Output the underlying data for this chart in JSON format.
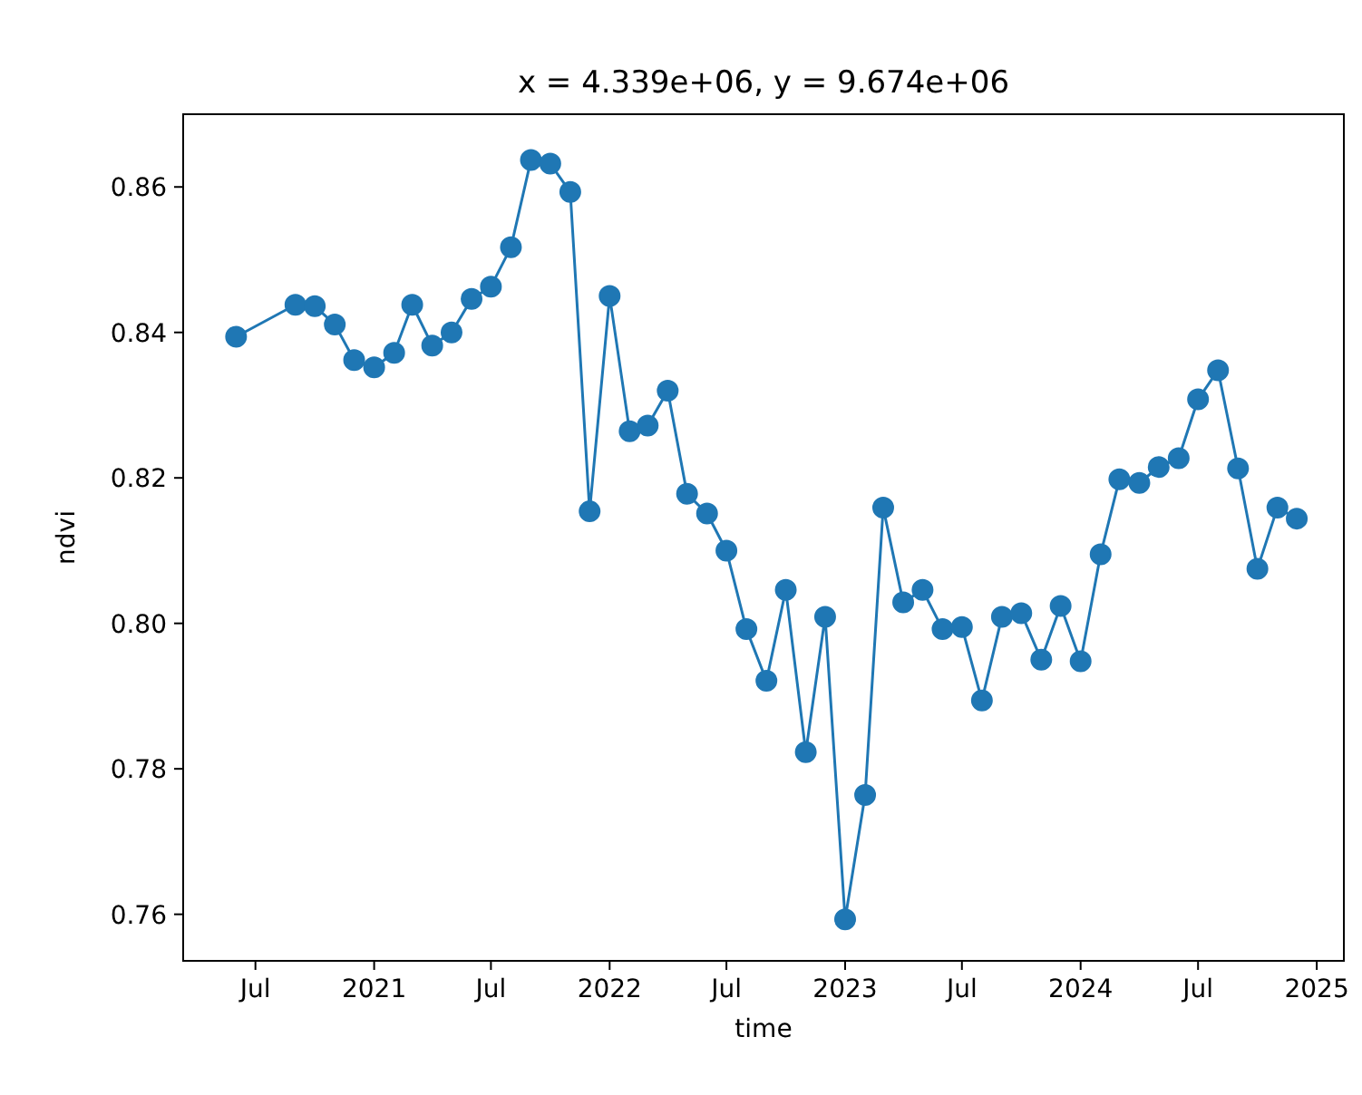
{
  "chart_data": {
    "type": "line",
    "title": "x = 4.339e+06, y = 9.674e+06",
    "xlabel": "time",
    "ylabel": "ndvi",
    "marker": "circle",
    "line_style": "solid",
    "grid": false,
    "x": [
      "2020-06-01",
      "2020-09-01",
      "2020-10-01",
      "2020-11-01",
      "2020-12-01",
      "2021-01-01",
      "2021-02-01",
      "2021-03-01",
      "2021-04-01",
      "2021-05-01",
      "2021-06-01",
      "2021-07-01",
      "2021-08-01",
      "2021-09-01",
      "2021-10-01",
      "2021-11-01",
      "2021-12-01",
      "2022-01-01",
      "2022-02-01",
      "2022-03-01",
      "2022-04-01",
      "2022-05-01",
      "2022-06-01",
      "2022-07-01",
      "2022-08-01",
      "2022-09-01",
      "2022-10-01",
      "2022-11-01",
      "2022-12-01",
      "2023-01-01",
      "2023-02-01",
      "2023-03-01",
      "2023-04-01",
      "2023-05-01",
      "2023-06-01",
      "2023-07-01",
      "2023-08-01",
      "2023-09-01",
      "2023-10-01",
      "2023-11-01",
      "2023-12-01",
      "2024-01-01",
      "2024-02-01",
      "2024-03-01",
      "2024-04-01",
      "2024-05-01",
      "2024-06-01",
      "2024-07-01",
      "2024-08-01",
      "2024-09-01",
      "2024-10-01",
      "2024-11-01",
      "2024-12-01"
    ],
    "series": [
      {
        "color": "#1f77b4",
        "values": [
          0.8394,
          0.8438,
          0.8436,
          0.8411,
          0.8362,
          0.8352,
          0.8372,
          0.8438,
          0.8382,
          0.84,
          0.8446,
          0.8463,
          0.8517,
          0.8637,
          0.8632,
          0.8593,
          0.8154,
          0.845,
          0.8264,
          0.8272,
          0.832,
          0.8178,
          0.8151,
          0.81,
          0.7992,
          0.7921,
          0.8046,
          0.7823,
          0.8009,
          0.7593,
          0.7764,
          0.8159,
          0.8029,
          0.8046,
          0.7992,
          0.7995,
          0.7894,
          0.8009,
          0.8014,
          0.795,
          0.8024,
          0.7948,
          0.8095,
          0.8198,
          0.8193,
          0.8215,
          0.8227,
          0.8308,
          0.8348,
          0.8213,
          0.8075,
          0.8159,
          0.8144
        ]
      }
    ],
    "xlim": [
      "2020-03-11",
      "2025-02-12"
    ],
    "xticks": [
      {
        "value": "2020-07",
        "label": "Jul"
      },
      {
        "value": "2021",
        "label": "2021"
      },
      {
        "value": "2021-07",
        "label": "Jul"
      },
      {
        "value": "2022",
        "label": "2022"
      },
      {
        "value": "2022-07",
        "label": "Jul"
      },
      {
        "value": "2023",
        "label": "2023"
      },
      {
        "value": "2023-07",
        "label": "Jul"
      },
      {
        "value": "2024",
        "label": "2024"
      },
      {
        "value": "2024-07",
        "label": "Jul"
      },
      {
        "value": "2025",
        "label": "2025"
      }
    ],
    "ylim": [
      0.7536,
      0.87
    ],
    "yticks": [
      {
        "value": 0.76,
        "label": "0.76"
      },
      {
        "value": 0.78,
        "label": "0.78"
      },
      {
        "value": 0.8,
        "label": "0.80"
      },
      {
        "value": 0.82,
        "label": "0.82"
      },
      {
        "value": 0.84,
        "label": "0.84"
      },
      {
        "value": 0.86,
        "label": "0.86"
      }
    ]
  }
}
